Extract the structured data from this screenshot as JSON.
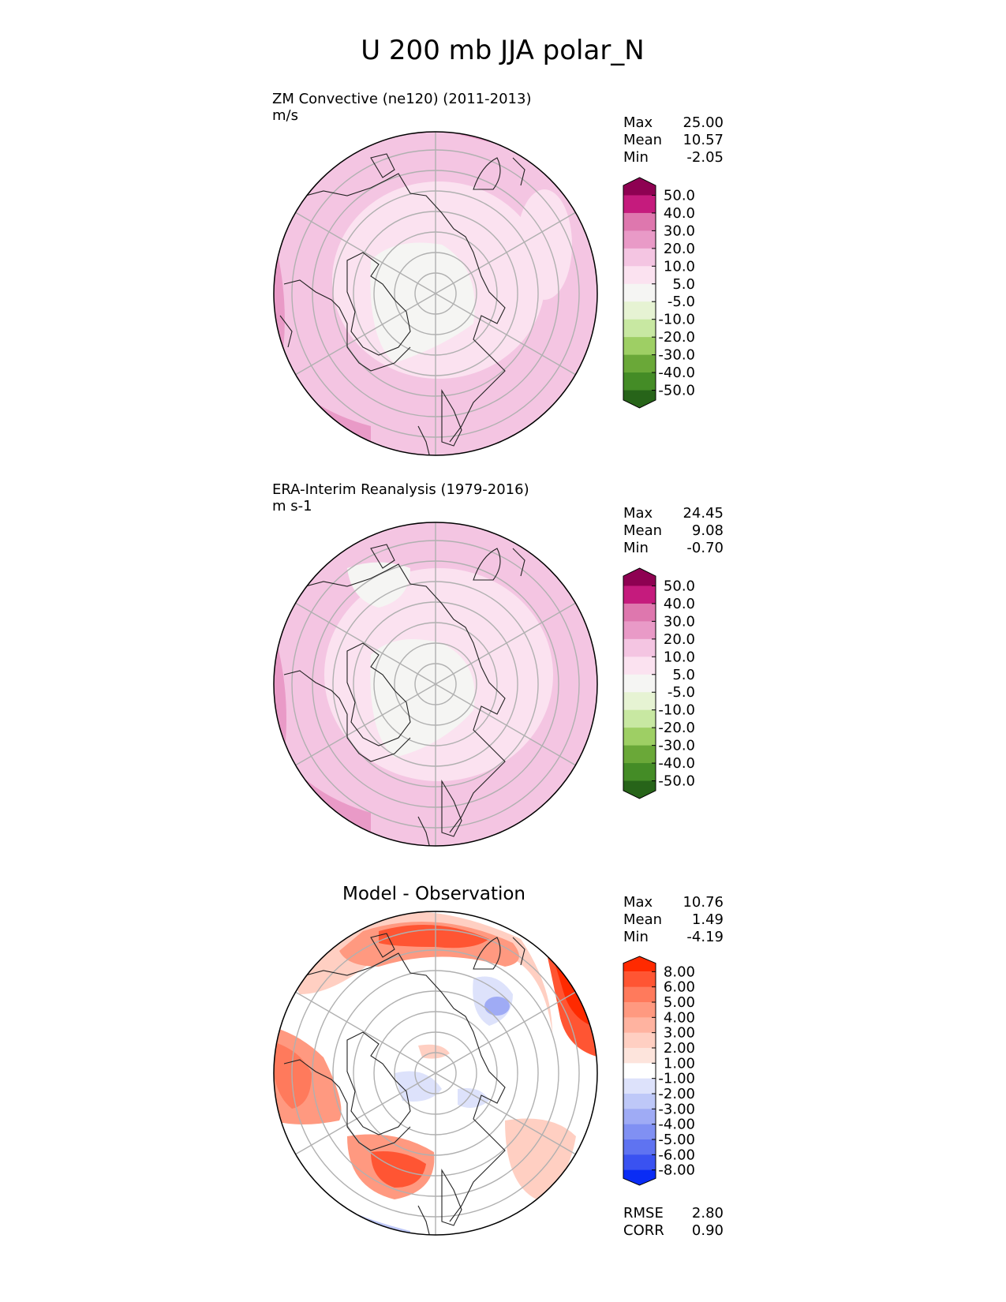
{
  "figure": {
    "title": "U 200 mb JJA polar_N"
  },
  "chart_data": [
    {
      "type": "heatmap",
      "projection": "north-polar-stereographic",
      "title": "ZM Convective (ne120) (2011-2013)",
      "units": "m/s",
      "stats": [
        {
          "label": "Max",
          "value": "25.00"
        },
        {
          "label": "Mean",
          "value": "10.57"
        },
        {
          "label": "Min",
          "value": "-2.05"
        }
      ],
      "colorbar": {
        "ticks": [
          "50.0",
          "40.0",
          "30.0",
          "20.0",
          "10.0",
          "5.0",
          "-5.0",
          "-10.0",
          "-20.0",
          "-30.0",
          "-40.0",
          "-50.0"
        ],
        "colors": [
          "#8e0152",
          "#c51b7d",
          "#de77ae",
          "#e99ac7",
          "#f4c5e2",
          "#fbe2f0",
          "#f5f5f3",
          "#e6f3d3",
          "#c8e8a2",
          "#9ecf64",
          "#6aa838",
          "#448c26",
          "#276419"
        ]
      }
    },
    {
      "type": "heatmap",
      "projection": "north-polar-stereographic",
      "title": "ERA-Interim Reanalysis (1979-2016)",
      "units": "m s-1",
      "stats": [
        {
          "label": "Max",
          "value": "24.45"
        },
        {
          "label": "Mean",
          "value": "9.08"
        },
        {
          "label": "Min",
          "value": "-0.70"
        }
      ],
      "colorbar": {
        "ticks": [
          "50.0",
          "40.0",
          "30.0",
          "20.0",
          "10.0",
          "5.0",
          "-5.0",
          "-10.0",
          "-20.0",
          "-30.0",
          "-40.0",
          "-50.0"
        ],
        "colors": [
          "#8e0152",
          "#c51b7d",
          "#de77ae",
          "#e99ac7",
          "#f4c5e2",
          "#fbe2f0",
          "#f5f5f3",
          "#e6f3d3",
          "#c8e8a2",
          "#9ecf64",
          "#6aa838",
          "#448c26",
          "#276419"
        ]
      }
    },
    {
      "type": "heatmap",
      "projection": "north-polar-stereographic",
      "title": "Model - Observation",
      "units": "",
      "stats": [
        {
          "label": "Max",
          "value": "10.76"
        },
        {
          "label": "Mean",
          "value": "1.49"
        },
        {
          "label": "Min",
          "value": "-4.19"
        }
      ],
      "extra_stats": [
        {
          "label": "RMSE",
          "value": "2.80"
        },
        {
          "label": "CORR",
          "value": "0.90"
        }
      ],
      "colorbar": {
        "ticks": [
          "8.00",
          "6.00",
          "5.00",
          "4.00",
          "3.00",
          "2.00",
          "1.00",
          "-1.00",
          "-2.00",
          "-3.00",
          "-4.00",
          "-5.00",
          "-6.00",
          "-8.00"
        ],
        "colors": [
          "#ff2a00",
          "#ff5533",
          "#ff7a5c",
          "#ff9980",
          "#ffb3a0",
          "#ffcfc2",
          "#fde4dc",
          "#ffffff",
          "#dde2fb",
          "#bec8f8",
          "#9fabf5",
          "#8090f3",
          "#5f73f1",
          "#3a52f1",
          "#0a2cf5"
        ]
      }
    }
  ]
}
